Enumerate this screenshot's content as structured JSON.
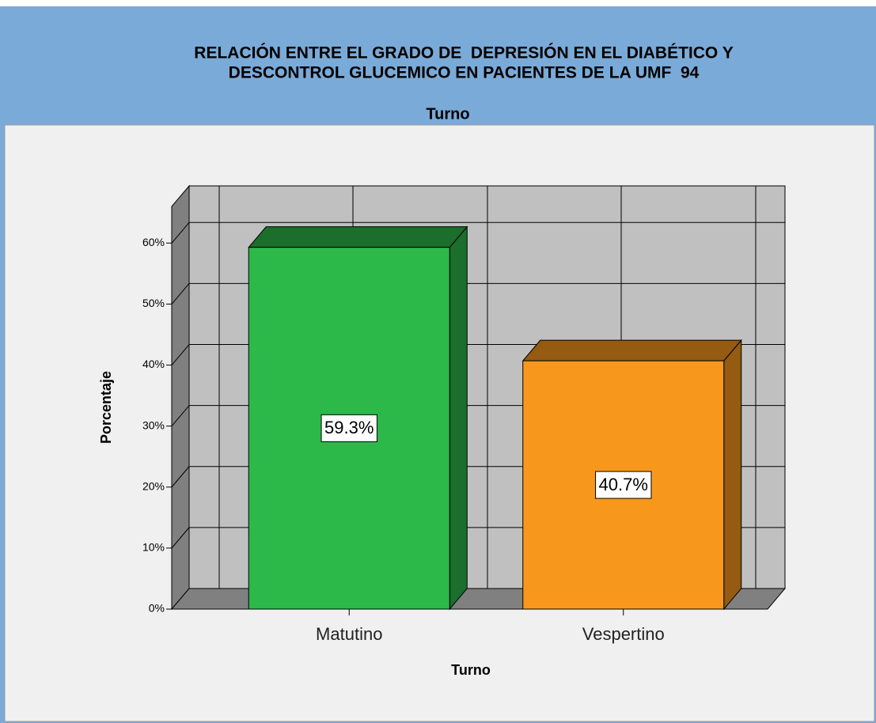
{
  "chart_data": {
    "type": "bar3d",
    "title": [
      "RELACIÓN ENTRE EL GRADO DE  DEPRESIÓN EN EL DIABÉTICO Y",
      "DESCONTROL GLUCEMICO EN PACIENTES DE LA UMF  94"
    ],
    "subtitle": "Turno",
    "x_label": "Turno",
    "y_label": "Porcentaje",
    "categories": [
      "Matutino",
      "Vespertino"
    ],
    "series": [
      {
        "colors": [
          "#2db84a",
          "#f7981d"
        ],
        "values": [
          59.3,
          40.7
        ],
        "value_labels": [
          "59.3%",
          "40.7%"
        ]
      }
    ],
    "ylim": [
      0,
      66
    ],
    "yticks": [
      {
        "value": 0,
        "label": "0%"
      },
      {
        "value": 10,
        "label": "10%"
      },
      {
        "value": 20,
        "label": "20%"
      },
      {
        "value": 30,
        "label": "30%"
      },
      {
        "value": 40,
        "label": "40%"
      },
      {
        "value": 50,
        "label": "50%"
      },
      {
        "value": 60,
        "label": "60%"
      }
    ],
    "grid": true
  }
}
